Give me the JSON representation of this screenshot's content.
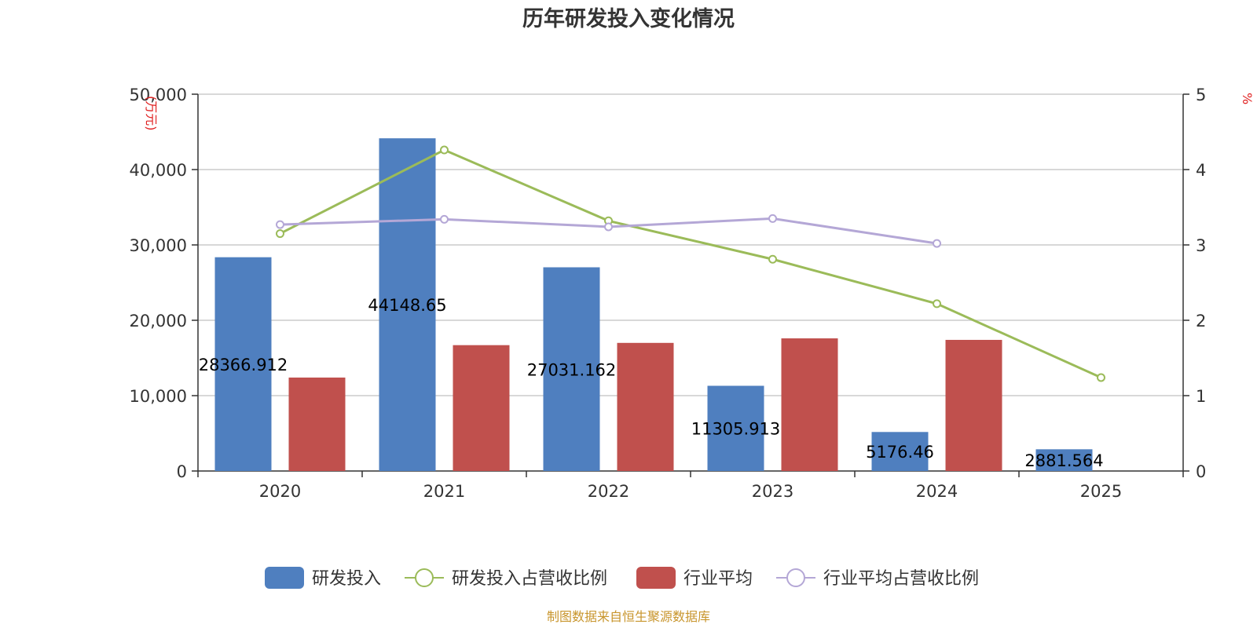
{
  "chart_data": {
    "type": "bar",
    "title": "历年研发投入变化情况",
    "categories": [
      "2020",
      "2021",
      "2022",
      "2023",
      "2024",
      "2025"
    ],
    "y_left": {
      "unit": "(万元)",
      "ylim": [
        0,
        50000
      ],
      "ticks": [
        "0",
        "10,000",
        "20,000",
        "30,000",
        "40,000",
        "50,000"
      ],
      "tick_values": [
        0,
        10000,
        20000,
        30000,
        40000,
        50000
      ]
    },
    "y_right": {
      "unit": "%",
      "ylim": [
        0,
        5
      ],
      "ticks": [
        "0",
        "1",
        "2",
        "3",
        "4",
        "5"
      ],
      "tick_values": [
        0,
        1,
        2,
        3,
        4,
        5
      ]
    },
    "series": [
      {
        "name": "研发投入",
        "kind": "bar",
        "axis": "left",
        "color": "#4f7fbf",
        "values": [
          28366.912,
          44148.65,
          27031.162,
          11305.913,
          5176.46,
          2881.564
        ],
        "labels": [
          "28366.912",
          "44148.65",
          "27031.162",
          "11305.913",
          "5176.46",
          "2881.564"
        ]
      },
      {
        "name": "研发投入占营收比例",
        "kind": "line",
        "axis": "right",
        "color": "#9bbb59",
        "values": [
          3.15,
          4.26,
          3.32,
          2.81,
          2.22,
          1.24
        ]
      },
      {
        "name": "行业平均",
        "kind": "bar",
        "axis": "left",
        "color": "#c0504d",
        "values": [
          12400,
          16700,
          17000,
          17600,
          17400,
          null
        ]
      },
      {
        "name": "行业平均占营收比例",
        "kind": "line",
        "axis": "right",
        "color": "#b4a7d6",
        "values": [
          3.27,
          3.34,
          3.24,
          3.35,
          3.02,
          null
        ]
      }
    ],
    "grid": true,
    "legend_position": "bottom"
  },
  "source": "制图数据来自恒生聚源数据库"
}
